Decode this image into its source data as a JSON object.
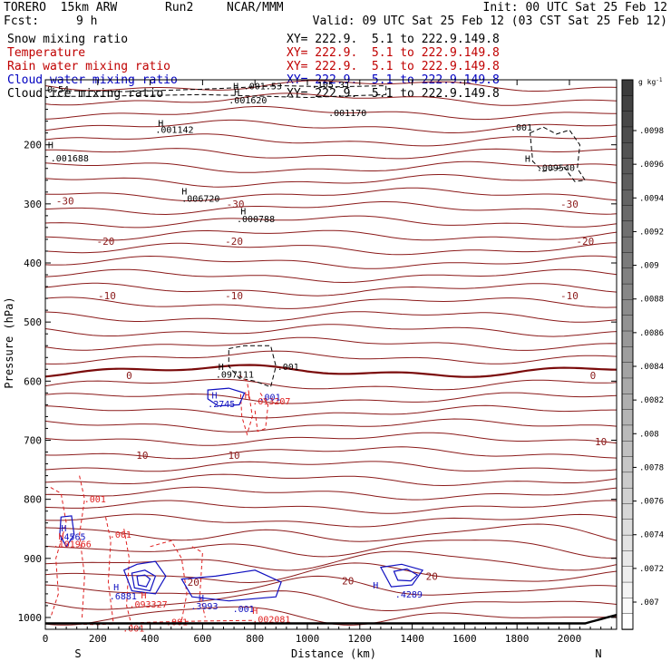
{
  "header": {
    "model": "TORERO  15km ARW",
    "run": "Run2",
    "org": "NCAR/MMM",
    "init": "Init: 00 UTC Sat 25 Feb 12",
    "fcst_label": "Fcst:",
    "fcst_value": "9 h",
    "valid": "Valid: 09 UTC Sat 25 Feb 12 (03 CST Sat 25 Feb 12)"
  },
  "legend": [
    {
      "name": "Snow mixing ratio",
      "xy": "XY= 222.9.  5.1 to 222.9.149.8",
      "color": "#000000"
    },
    {
      "name": "Temperature",
      "xy": "XY= 222.9.  5.1 to 222.9.149.8",
      "color": "#c00000"
    },
    {
      "name": "Rain water mixing ratio",
      "xy": "XY= 222.9.  5.1 to 222.9.149.8",
      "color": "#c00000"
    },
    {
      "name": "Cloud water mixing ratio",
      "xy": "XY= 222.9.  5.1 to 222.9.149.8",
      "color": "#0000c0"
    },
    {
      "name": "Cloud ice mixing ratio",
      "xy": "XY= 222.9.  5.1 to 222.9.149.8",
      "color": "#000000"
    }
  ],
  "colors": {
    "temperature": "#8b1a1a",
    "zero_isotherm": "#7a0a0a",
    "rain": "#e02020",
    "cloud_water": "#1010c0",
    "ice": "#000000",
    "terrain": "#000000"
  },
  "chart_data": {
    "type": "contour-cross-section",
    "xlabel": "Distance (km)",
    "ylabel": "Pressure (hPa)",
    "xlim": [
      0,
      2180
    ],
    "ylim": [
      1020,
      90
    ],
    "x_ticks": [
      0,
      200,
      400,
      600,
      800,
      1000,
      1200,
      1400,
      1600,
      1800,
      2000
    ],
    "y_ticks": [
      200,
      300,
      400,
      500,
      600,
      700,
      800,
      900,
      1000
    ],
    "endpoint_labels": {
      "left": "S",
      "right": "N"
    },
    "colorbar": {
      "unit": "g kg",
      "unit_exp": "-1",
      "ticks": [
        ".0098",
        ".0096",
        ".0094",
        ".0092",
        ".009",
        ".0088",
        ".0086",
        ".0084",
        ".0082",
        ".008",
        ".0078",
        ".0076",
        ".0074",
        ".0072",
        ".007"
      ]
    },
    "temperature_labels": [
      {
        "text": "-30",
        "x": 75,
        "p": 295
      },
      {
        "text": "-30",
        "x": 725,
        "p": 300
      },
      {
        "text": "-30",
        "x": 2000,
        "p": 300
      },
      {
        "text": "-20",
        "x": 230,
        "p": 363
      },
      {
        "text": "-20",
        "x": 720,
        "p": 363
      },
      {
        "text": "-20",
        "x": 2060,
        "p": 363
      },
      {
        "text": "-10",
        "x": 235,
        "p": 455
      },
      {
        "text": "-10",
        "x": 720,
        "p": 455
      },
      {
        "text": "-10",
        "x": 2000,
        "p": 455
      },
      {
        "text": "0",
        "x": 320,
        "p": 590
      },
      {
        "text": "0",
        "x": 2090,
        "p": 590
      },
      {
        "text": "10",
        "x": 370,
        "p": 725
      },
      {
        "text": "10",
        "x": 720,
        "p": 725
      },
      {
        "text": "10",
        "x": 2120,
        "p": 702
      },
      {
        "text": "20",
        "x": 565,
        "p": 940
      },
      {
        "text": "20",
        "x": 1155,
        "p": 938
      },
      {
        "text": "20",
        "x": 1475,
        "p": 930
      }
    ],
    "max_labels": [
      {
        "text": ".001688",
        "x": 20,
        "p": 222,
        "color": "#000000"
      },
      {
        "text": ".001142",
        "x": 420,
        "p": 174,
        "color": "#000000"
      },
      {
        "text": ".001620",
        "x": 700,
        "p": 124,
        "color": "#000000"
      },
      {
        "text": ".001170",
        "x": 1080,
        "p": 145,
        "color": "#000000"
      },
      {
        "text": ".006720",
        "x": 520,
        "p": 290,
        "color": "#000000"
      },
      {
        "text": ".000788",
        "x": 730,
        "p": 325,
        "color": "#000000"
      },
      {
        "text": ".009540",
        "x": 1875,
        "p": 238,
        "color": "#000000"
      },
      {
        "text": ".001",
        "x": 1775,
        "p": 170,
        "color": "#000000"
      },
      {
        "text": ".097111",
        "x": 650,
        "p": 588,
        "color": "#000000"
      },
      {
        "text": ".001",
        "x": 885,
        "p": 575,
        "color": "#000000"
      },
      {
        "text": ".2745",
        "x": 620,
        "p": 638,
        "color": "#1010c0"
      },
      {
        "text": ".013207",
        "x": 790,
        "p": 633,
        "color": "#e02020"
      },
      {
        "text": ".001",
        "x": 815,
        "p": 626,
        "color": "#1010c0"
      },
      {
        "text": ".001",
        "x": 148,
        "p": 799,
        "color": "#e02020"
      },
      {
        "text": ".4565",
        "x": 50,
        "p": 863,
        "color": "#1010c0"
      },
      {
        "text": ".101966",
        "x": 30,
        "p": 875,
        "color": "#e02020"
      },
      {
        "text": ".001",
        "x": 245,
        "p": 859,
        "color": "#e02020"
      },
      {
        "text": ".6881",
        "x": 245,
        "p": 963,
        "color": "#1010c0"
      },
      {
        "text": ".093327",
        "x": 320,
        "p": 977,
        "color": "#e02020"
      },
      {
        "text": ".3993",
        "x": 555,
        "p": 980,
        "color": "#1010c0"
      },
      {
        "text": ".001",
        "x": 715,
        "p": 985,
        "color": "#1010c0"
      },
      {
        "text": ".002081",
        "x": 790,
        "p": 1002,
        "color": "#e02020"
      },
      {
        "text": ".4289",
        "x": 1335,
        "p": 960,
        "color": "#1010c0"
      },
      {
        "text": ".001",
        "x": 460,
        "p": 1007,
        "color": "#e02020"
      },
      {
        "text": ".001",
        "x": 295,
        "p": 1018,
        "color": "#e02020"
      }
    ],
    "H_marks": [
      {
        "x": 10,
        "p": 200,
        "color": "#000000"
      },
      {
        "x": 430,
        "p": 163,
        "color": "#000000"
      },
      {
        "x": 720,
        "p": 110,
        "color": "#000000"
      },
      {
        "x": 520,
        "p": 278,
        "color": "#000000"
      },
      {
        "x": 745,
        "p": 312,
        "color": "#000000"
      },
      {
        "x": 1830,
        "p": 223,
        "color": "#000000"
      },
      {
        "x": 660,
        "p": 575,
        "color": "#000000"
      },
      {
        "x": 635,
        "p": 623,
        "color": "#1010c0"
      },
      {
        "x": 760,
        "p": 623,
        "color": "#e02020"
      },
      {
        "x": 60,
        "p": 848,
        "color": "#1010c0"
      },
      {
        "x": 50,
        "p": 862,
        "color": "#e02020"
      },
      {
        "x": 260,
        "p": 948,
        "color": "#1010c0"
      },
      {
        "x": 365,
        "p": 962,
        "color": "#e02020"
      },
      {
        "x": 585,
        "p": 966,
        "color": "#1010c0"
      },
      {
        "x": 790,
        "p": 988,
        "color": "#e02020"
      },
      {
        "x": 1250,
        "p": 945,
        "color": "#1010c0"
      }
    ],
    "top_partial_labels": [
      {
        "text": "0.54",
        "x": 0,
        "p": 105
      },
      {
        "text": "H",
        "x": 710,
        "p": 100
      },
      {
        "text": ".001.53",
        "x": 750,
        "p": 100
      },
      {
        "text": ".105.31",
        "x": 1010,
        "p": 98
      }
    ]
  }
}
